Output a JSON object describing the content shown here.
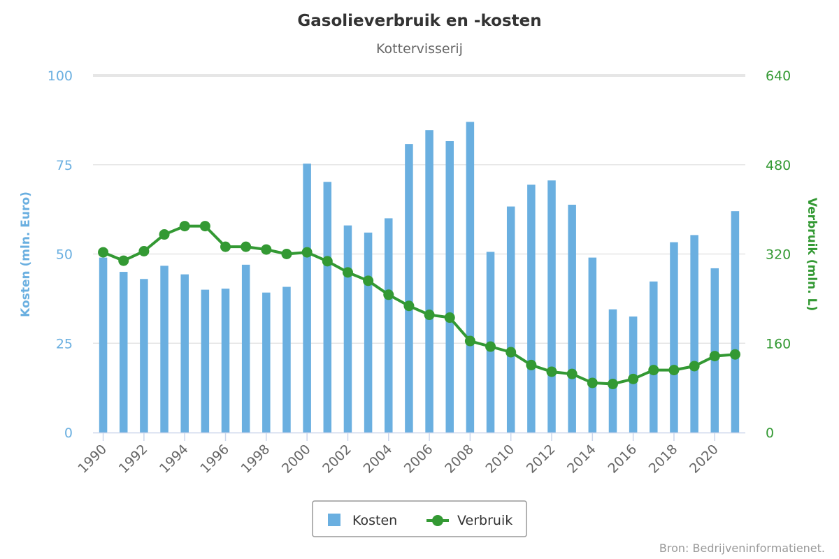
{
  "chart_data": {
    "type": "bar+line",
    "title": "Gasolieverbruik en -kosten",
    "subtitle": "Kottervisserij",
    "categories": [
      1990,
      1991,
      1992,
      1993,
      1994,
      1995,
      1996,
      1997,
      1998,
      1999,
      2000,
      2001,
      2002,
      2003,
      2004,
      2005,
      2006,
      2007,
      2008,
      2009,
      2010,
      2011,
      2012,
      2013,
      2014,
      2015,
      2016,
      2017,
      2018,
      2019,
      2020,
      2021
    ],
    "x_tick_labels": [
      "1990",
      "1992",
      "1994",
      "1996",
      "1998",
      "2000",
      "2002",
      "2004",
      "2006",
      "2008",
      "2010",
      "2012",
      "2014",
      "2016",
      "2018",
      "2020"
    ],
    "y_left": {
      "label": "Kosten (mln. Euro)",
      "range": [
        0,
        100
      ],
      "ticks": [
        "0",
        "25",
        "50",
        "75",
        "100"
      ]
    },
    "y_right": {
      "label": "Verbruik (mln. L)",
      "range": [
        0,
        640
      ],
      "ticks": [
        "0",
        "160",
        "320",
        "480",
        "640"
      ]
    },
    "series": [
      {
        "name": "Kosten",
        "type": "bar",
        "axis": "left",
        "color": "#6aafe0",
        "values": [
          49,
          45,
          43,
          46.7,
          44.3,
          40,
          40.3,
          47,
          39.2,
          40.8,
          75.3,
          70.2,
          58,
          56,
          60,
          80.8,
          84.7,
          81.6,
          87,
          50.6,
          63.3,
          69.4,
          70.6,
          63.8,
          49,
          34.5,
          32.5,
          42.3,
          53.3,
          55.3,
          46,
          62
        ]
      },
      {
        "name": "Verbruik",
        "type": "line",
        "axis": "right",
        "color": "#339933",
        "values": [
          323,
          308,
          325,
          355,
          370,
          370,
          333,
          333,
          328,
          320,
          323,
          307,
          287,
          272,
          247,
          227,
          211,
          206,
          164,
          154,
          144,
          121,
          109,
          105,
          89,
          87,
          96,
          112,
          112,
          119,
          137,
          140
        ]
      }
    ],
    "legend": {
      "position": "bottom-center"
    },
    "grid": {
      "y_major": true
    }
  },
  "credit": "Bron: Bedrijveninformatienet."
}
